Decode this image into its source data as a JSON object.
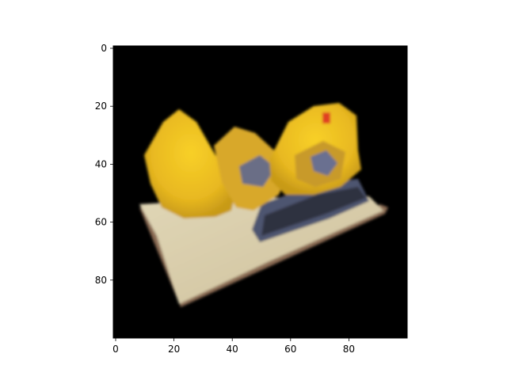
{
  "chart_data": {
    "type": "image",
    "title": "",
    "xlabel": "",
    "ylabel": "",
    "image_extent": {
      "x": [
        0,
        100
      ],
      "y": [
        0,
        100
      ]
    },
    "x_ticks": [
      0,
      20,
      40,
      60,
      80
    ],
    "y_ticks": [
      0,
      20,
      40,
      60,
      80
    ],
    "y_axis_inverted": true,
    "grid": false,
    "background_color": "#000000",
    "description_colors": {
      "yellow": "#f2c41a",
      "orange": "#e0a020",
      "cream": "#d8ccaa",
      "brown": "#8a6a52",
      "slate": "#5a6078",
      "red": "#e04020"
    }
  }
}
